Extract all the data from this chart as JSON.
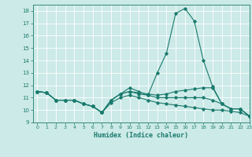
{
  "xlabel": "Humidex (Indice chaleur)",
  "xlim": [
    -0.5,
    23
  ],
  "ylim": [
    9,
    18.5
  ],
  "yticks": [
    9,
    10,
    11,
    12,
    13,
    14,
    15,
    16,
    17,
    18
  ],
  "xticks": [
    0,
    1,
    2,
    3,
    4,
    5,
    6,
    7,
    8,
    9,
    10,
    11,
    12,
    13,
    14,
    15,
    16,
    17,
    18,
    19,
    20,
    21,
    22,
    23
  ],
  "bg_color": "#cceae7",
  "line_color": "#1a7a6e",
  "grid_color": "#ffffff",
  "series": [
    [
      11.5,
      11.4,
      10.8,
      10.8,
      10.8,
      10.5,
      10.3,
      9.8,
      10.8,
      11.3,
      11.8,
      11.5,
      11.2,
      13.0,
      14.6,
      17.8,
      18.2,
      17.2,
      14.0,
      11.9,
      10.5,
      10.1,
      10.1,
      9.5
    ],
    [
      11.5,
      11.4,
      10.8,
      10.8,
      10.8,
      10.5,
      10.3,
      9.8,
      10.8,
      11.3,
      11.5,
      11.4,
      11.3,
      11.2,
      11.3,
      11.5,
      11.6,
      11.7,
      11.8,
      11.8,
      10.5,
      10.1,
      10.1,
      9.5
    ],
    [
      11.5,
      11.4,
      10.8,
      10.8,
      10.8,
      10.5,
      10.3,
      9.8,
      10.8,
      11.3,
      11.5,
      11.3,
      11.2,
      11.0,
      11.0,
      11.0,
      11.0,
      11.0,
      11.0,
      10.8,
      10.5,
      10.1,
      10.1,
      9.5
    ],
    [
      11.5,
      11.4,
      10.8,
      10.8,
      10.8,
      10.5,
      10.3,
      9.8,
      10.6,
      11.0,
      11.2,
      11.0,
      10.8,
      10.6,
      10.5,
      10.4,
      10.3,
      10.2,
      10.1,
      10.0,
      10.0,
      9.9,
      9.8,
      9.5
    ]
  ]
}
